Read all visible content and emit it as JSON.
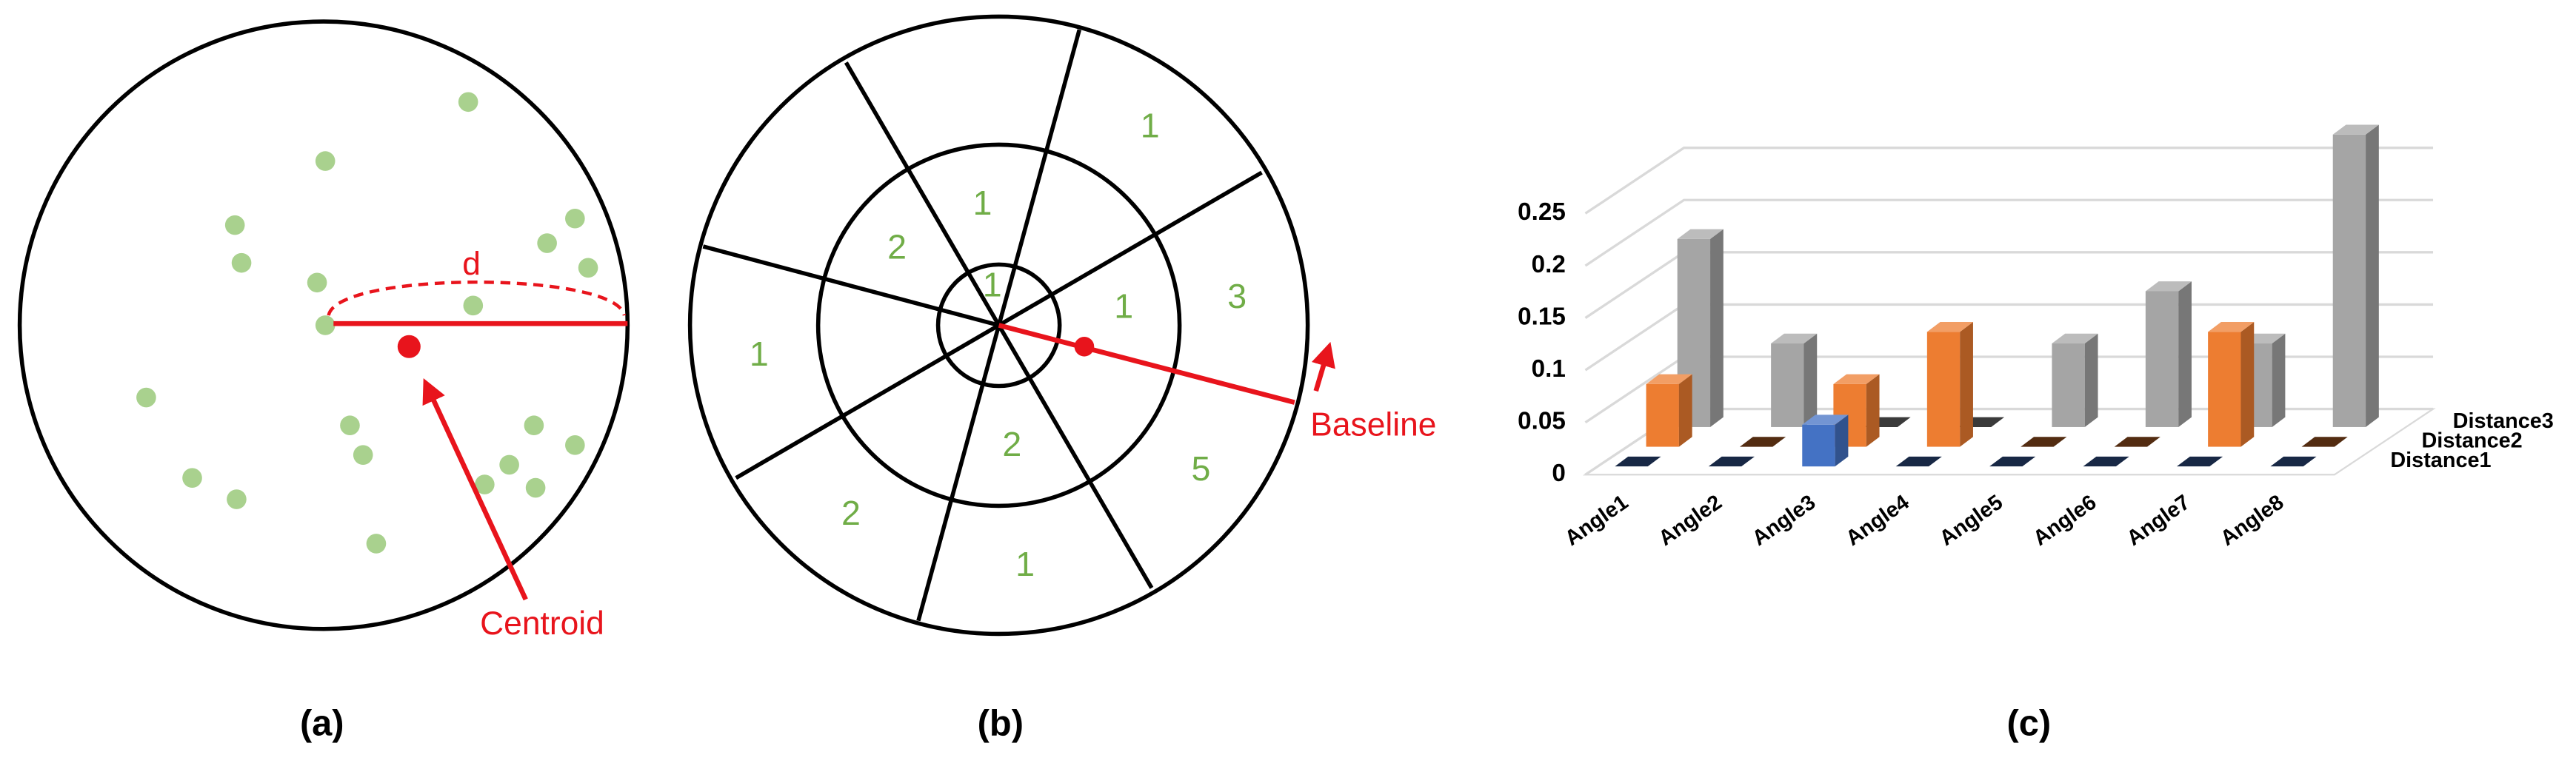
{
  "panel_labels": [
    "(a)",
    "(b)",
    "(c)"
  ],
  "diagram_a": {
    "distance_label": "d",
    "centroid_label": "Centroid"
  },
  "diagram_b": {
    "baseline_label": "Baseline",
    "sector_counts": [
      1,
      1,
      2,
      1,
      1,
      3,
      1,
      2,
      5,
      2,
      1
    ]
  },
  "chart_data": {
    "type": "bar3d",
    "categories": [
      "Angle1",
      "Angle2",
      "Angle3",
      "Angle4",
      "Angle5",
      "Angle6",
      "Angle7",
      "Angle8"
    ],
    "series": [
      {
        "name": "Distance1",
        "color": "#4472c4",
        "values": [
          0,
          0,
          0.04,
          0,
          0,
          0,
          0,
          0
        ]
      },
      {
        "name": "Distance2",
        "color": "#ed7d31",
        "values": [
          0.06,
          0,
          0.06,
          0.11,
          0,
          0,
          0.11,
          0
        ]
      },
      {
        "name": "Distance3",
        "color": "#a5a5a5",
        "values": [
          0.18,
          0.08,
          0,
          0,
          0.08,
          0.13,
          0.08,
          0.28
        ]
      }
    ],
    "ylim": [
      0,
      0.25
    ],
    "yticks": [
      0,
      0.05,
      0.1,
      0.15,
      0.2,
      0.25
    ],
    "grid": true
  }
}
